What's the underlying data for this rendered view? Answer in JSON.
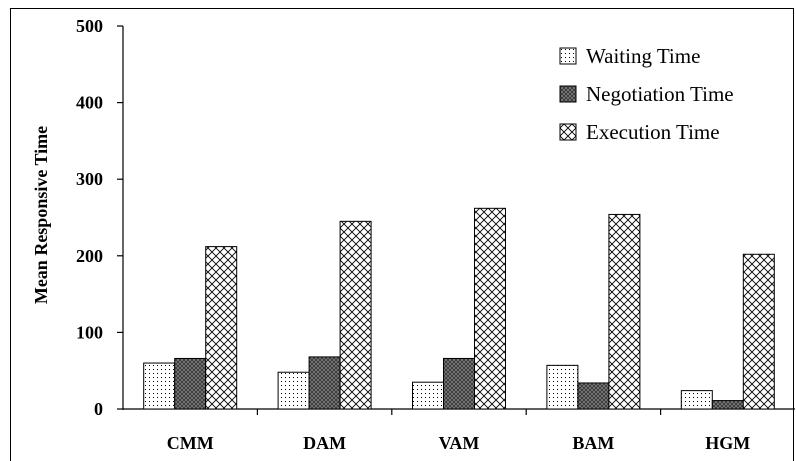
{
  "chart_data": {
    "type": "bar",
    "title": "",
    "xlabel": "",
    "ylabel": "Mean Responsive Time",
    "ylim": [
      0,
      500
    ],
    "yticks": [
      0,
      100,
      200,
      300,
      400,
      500
    ],
    "grid": false,
    "legend_position": "top-right",
    "categories": [
      "CMM",
      "DAM",
      "VAM",
      "BAM",
      "HGM"
    ],
    "series": [
      {
        "name": "Waiting Time",
        "pattern": "dots",
        "values": [
          60,
          48,
          35,
          57,
          24
        ]
      },
      {
        "name": "Negotiation Time",
        "pattern": "crosshatch-dark",
        "values": [
          66,
          68,
          66,
          34,
          11
        ]
      },
      {
        "name": "Execution Time",
        "pattern": "diagonal-cross",
        "values": [
          212,
          245,
          262,
          254,
          202
        ]
      }
    ]
  }
}
